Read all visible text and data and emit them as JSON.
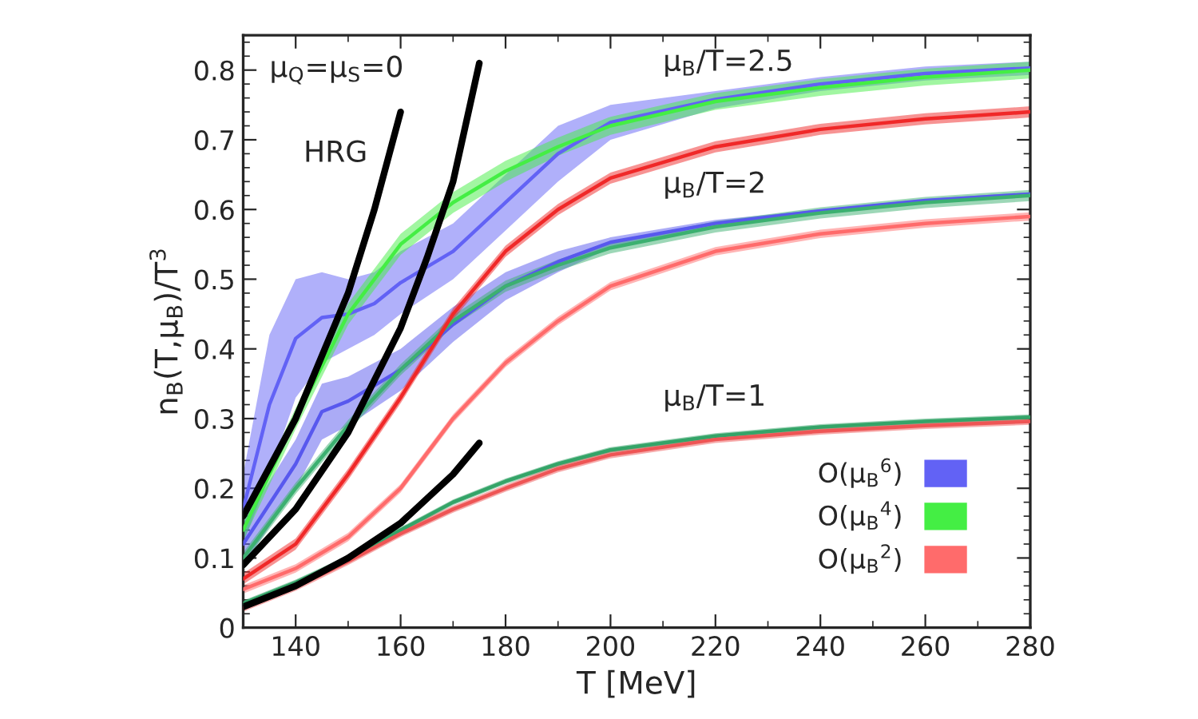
{
  "chart_data": {
    "type": "line",
    "xlabel": "T [MeV]",
    "ylabel": "n$_{B}$(T,μ$_{B}$)/T$^{3}$",
    "xlim": [
      130,
      280
    ],
    "xticks": [
      140,
      160,
      180,
      200,
      220,
      240,
      260,
      280
    ],
    "ylim": [
      0,
      0.85
    ],
    "yticks": [
      0,
      0.1,
      0.2,
      0.3,
      0.4,
      0.5,
      0.6,
      0.7,
      0.8
    ],
    "grid": false,
    "legend": "bottom right",
    "annotations": [
      "μ$_{Q}$=μ$_{S}$=0",
      "HRG",
      "μ$_{B}$/T=2.5",
      "μ$_{B}$/T=2",
      "μ$_{B}$/T=1"
    ],
    "series": [
      {
        "name": "O(μ$_{B}$$^{6}$)",
        "color": "#6262f5",
        "x": [
          130,
          135,
          140,
          145,
          150,
          155,
          160,
          170,
          180,
          190,
          200,
          220,
          240,
          260,
          280
        ],
        "values": [
          0.17,
          0.32,
          0.415,
          0.445,
          0.45,
          0.465,
          0.495,
          0.54,
          0.61,
          0.68,
          0.725,
          0.758,
          0.78,
          0.795,
          0.803
        ],
        "lower": [
          0.12,
          0.22,
          0.33,
          0.38,
          0.4,
          0.42,
          0.45,
          0.5,
          0.57,
          0.64,
          0.7,
          0.745,
          0.77,
          0.785,
          0.793
        ],
        "upper": [
          0.22,
          0.42,
          0.5,
          0.51,
          0.5,
          0.51,
          0.54,
          0.58,
          0.65,
          0.72,
          0.75,
          0.77,
          0.79,
          0.805,
          0.812
        ]
      },
      {
        "color": "#5858ee",
        "x": [
          130,
          140,
          145,
          150,
          160,
          170,
          180,
          190,
          200,
          220,
          240,
          260,
          280
        ],
        "values": [
          0.12,
          0.235,
          0.31,
          0.325,
          0.37,
          0.435,
          0.49,
          0.525,
          0.553,
          0.58,
          0.598,
          0.613,
          0.622
        ],
        "lower": [
          0.09,
          0.2,
          0.27,
          0.29,
          0.34,
          0.41,
          0.47,
          0.51,
          0.545,
          0.575,
          0.595,
          0.61,
          0.618
        ],
        "upper": [
          0.15,
          0.27,
          0.35,
          0.36,
          0.4,
          0.46,
          0.51,
          0.54,
          0.56,
          0.585,
          0.6,
          0.615,
          0.625
        ]
      },
      {
        "name": "O(μ$_{B}$$^{4}$)",
        "color": "#44ee44",
        "x": [
          130,
          140,
          150,
          160,
          170,
          180,
          190,
          200,
          220,
          240,
          260,
          280
        ],
        "values": [
          0.14,
          0.3,
          0.45,
          0.55,
          0.61,
          0.655,
          0.69,
          0.72,
          0.755,
          0.775,
          0.79,
          0.8
        ],
        "lower": [
          0.125,
          0.285,
          0.435,
          0.535,
          0.595,
          0.64,
          0.677,
          0.707,
          0.743,
          0.763,
          0.778,
          0.788
        ],
        "upper": [
          0.155,
          0.315,
          0.465,
          0.565,
          0.625,
          0.67,
          0.703,
          0.733,
          0.767,
          0.787,
          0.802,
          0.812
        ]
      },
      {
        "color": "#3cb070",
        "x": [
          130,
          140,
          150,
          160,
          170,
          180,
          190,
          200,
          220,
          240,
          260,
          280
        ],
        "values": [
          0.1,
          0.2,
          0.29,
          0.37,
          0.44,
          0.49,
          0.52,
          0.545,
          0.575,
          0.595,
          0.61,
          0.62
        ],
        "lower": [
          0.092,
          0.192,
          0.282,
          0.362,
          0.432,
          0.482,
          0.512,
          0.537,
          0.567,
          0.587,
          0.602,
          0.612
        ],
        "upper": [
          0.108,
          0.208,
          0.298,
          0.378,
          0.448,
          0.498,
          0.528,
          0.553,
          0.583,
          0.603,
          0.618,
          0.628
        ]
      },
      {
        "color": "#34a468",
        "x": [
          130,
          140,
          150,
          160,
          170,
          180,
          190,
          200,
          220,
          240,
          260,
          280
        ],
        "values": [
          0.035,
          0.065,
          0.1,
          0.14,
          0.18,
          0.21,
          0.235,
          0.255,
          0.275,
          0.288,
          0.296,
          0.302
        ],
        "lower": [
          0.031,
          0.061,
          0.096,
          0.136,
          0.176,
          0.206,
          0.231,
          0.251,
          0.271,
          0.284,
          0.292,
          0.298
        ],
        "upper": [
          0.039,
          0.069,
          0.104,
          0.144,
          0.184,
          0.214,
          0.239,
          0.259,
          0.279,
          0.292,
          0.3,
          0.306
        ]
      },
      {
        "color": "#f02828",
        "x": [
          130,
          140,
          150,
          160,
          170,
          180,
          190,
          200,
          220,
          240,
          260,
          280
        ],
        "values": [
          0.07,
          0.12,
          0.22,
          0.33,
          0.45,
          0.54,
          0.6,
          0.645,
          0.69,
          0.715,
          0.73,
          0.74
        ],
        "lower": [
          0.062,
          0.112,
          0.212,
          0.322,
          0.442,
          0.532,
          0.592,
          0.637,
          0.682,
          0.707,
          0.722,
          0.732
        ],
        "upper": [
          0.078,
          0.128,
          0.228,
          0.338,
          0.458,
          0.548,
          0.608,
          0.653,
          0.698,
          0.723,
          0.738,
          0.748
        ]
      },
      {
        "name": "O(μ$_{B}$$^{2}$)",
        "color": "#ff6b6b",
        "x": [
          130,
          140,
          150,
          160,
          170,
          180,
          190,
          200,
          220,
          240,
          260,
          280
        ],
        "values": [
          0.055,
          0.085,
          0.13,
          0.2,
          0.3,
          0.38,
          0.44,
          0.49,
          0.54,
          0.565,
          0.58,
          0.59
        ],
        "lower": [
          0.049,
          0.079,
          0.124,
          0.194,
          0.294,
          0.374,
          0.434,
          0.484,
          0.534,
          0.559,
          0.574,
          0.584
        ],
        "upper": [
          0.061,
          0.091,
          0.136,
          0.206,
          0.306,
          0.386,
          0.446,
          0.496,
          0.546,
          0.571,
          0.586,
          0.596
        ]
      },
      {
        "color": "#ee5555",
        "x": [
          130,
          140,
          150,
          160,
          170,
          180,
          190,
          200,
          220,
          240,
          260,
          280
        ],
        "values": [
          0.028,
          0.058,
          0.095,
          0.135,
          0.17,
          0.2,
          0.228,
          0.248,
          0.27,
          0.282,
          0.29,
          0.296
        ],
        "lower": [
          0.023,
          0.053,
          0.09,
          0.13,
          0.165,
          0.195,
          0.223,
          0.243,
          0.265,
          0.277,
          0.285,
          0.291
        ],
        "upper": [
          0.033,
          0.063,
          0.1,
          0.14,
          0.175,
          0.205,
          0.233,
          0.253,
          0.275,
          0.287,
          0.295,
          0.301
        ]
      },
      {
        "color": "#000000",
        "x": [
          130,
          140,
          150,
          155,
          160
        ],
        "values": [
          0.16,
          0.3,
          0.48,
          0.6,
          0.74
        ]
      },
      {
        "color": "#000000",
        "x": [
          130,
          140,
          150,
          160,
          165,
          170,
          175
        ],
        "values": [
          0.09,
          0.17,
          0.28,
          0.43,
          0.53,
          0.64,
          0.81
        ]
      },
      {
        "color": "#000000",
        "x": [
          130,
          140,
          150,
          160,
          165,
          170,
          175
        ],
        "values": [
          0.03,
          0.06,
          0.1,
          0.15,
          0.185,
          0.22,
          0.265
        ]
      }
    ]
  }
}
